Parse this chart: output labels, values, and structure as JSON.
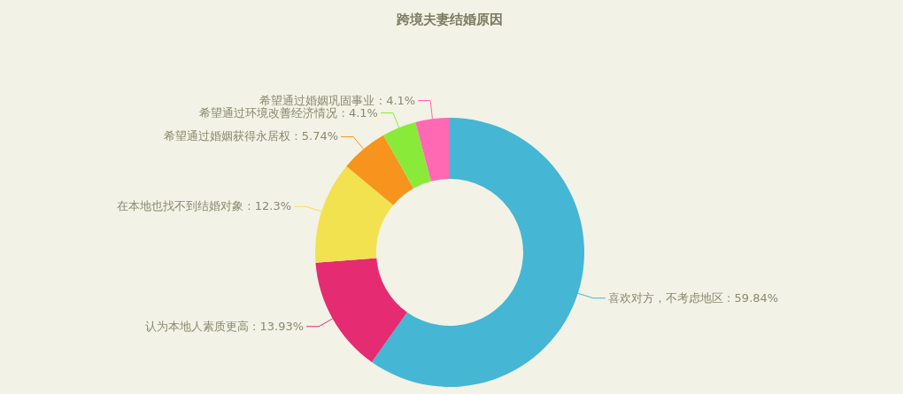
{
  "chart_data": {
    "type": "donut",
    "title": "跨境夫妻结婚原因",
    "categories": [
      "喜欢对方，不考虑地区",
      "认为本地人素质更高",
      "在本地也找不到结婚对象",
      "希望通过婚姻获得永居权",
      "希望通过环境改善经济情况",
      "希望通过婚姻巩固事业"
    ],
    "values": [
      59.84,
      13.93,
      12.3,
      5.74,
      4.1,
      4.1
    ],
    "value_labels": [
      "59.84%",
      "13.93%",
      "12.3%",
      "5.74%",
      "4.1%",
      "4.1%"
    ],
    "colors": [
      "#45b6d3",
      "#e52b71",
      "#f3e250",
      "#f7941d",
      "#8aea3a",
      "#ff69b4"
    ]
  }
}
